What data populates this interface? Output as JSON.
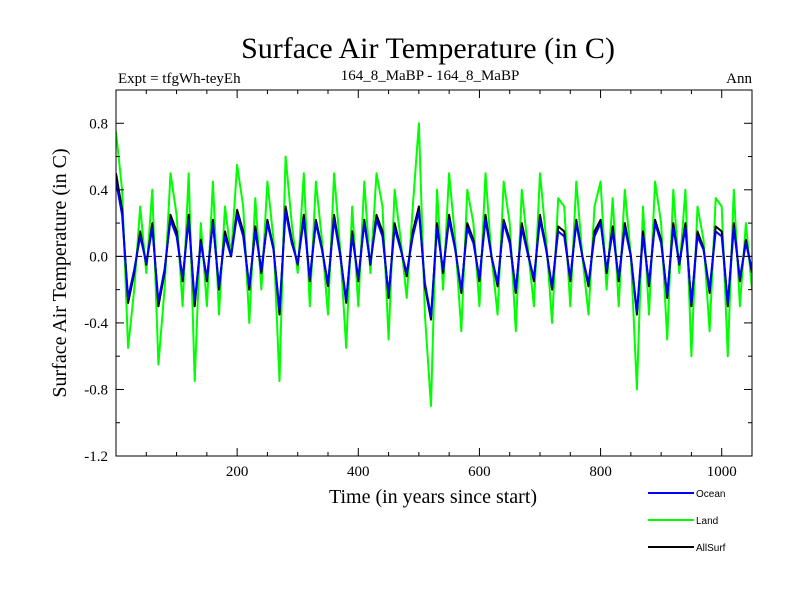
{
  "chart_data": {
    "type": "line",
    "title": "Surface Air Temperature (in C)",
    "subtitle_left": "Expt = tfgWh-teyEh",
    "subtitle_center": "164_8_MaBP - 164_8_MaBP",
    "subtitle_right": "Ann",
    "xlabel": "Time (in years since start)",
    "ylabel": "Surface Air Temperature (in C)",
    "xlim": [
      0,
      1050
    ],
    "ylim": [
      -1.2,
      1.0
    ],
    "x_ticks": [
      200,
      400,
      600,
      800,
      1000
    ],
    "x_tick_labels": [
      "200",
      "400",
      "600",
      "800",
      "1000"
    ],
    "y_ticks": [
      0.8,
      0.4,
      0.0,
      -0.4,
      -0.8,
      -1.2
    ],
    "y_tick_labels": [
      "0.8",
      "0.4",
      "0.0",
      "-0.4",
      "-0.8",
      "-1.2"
    ],
    "zero_line": 0.0,
    "legend_position": "bottom-right",
    "series": [
      {
        "name": "Land",
        "color": "#00ff00",
        "x": [
          0,
          10,
          20,
          30,
          40,
          50,
          60,
          70,
          80,
          90,
          100,
          110,
          120,
          130,
          140,
          150,
          160,
          170,
          180,
          190,
          200,
          210,
          220,
          230,
          240,
          250,
          260,
          270,
          280,
          290,
          300,
          310,
          320,
          330,
          340,
          350,
          360,
          370,
          380,
          390,
          400,
          410,
          420,
          430,
          440,
          450,
          460,
          470,
          480,
          490,
          500,
          510,
          520,
          530,
          540,
          550,
          560,
          570,
          580,
          590,
          600,
          610,
          620,
          630,
          640,
          650,
          660,
          670,
          680,
          690,
          700,
          710,
          720,
          730,
          740,
          750,
          760,
          770,
          780,
          790,
          800,
          810,
          820,
          830,
          840,
          850,
          860,
          870,
          880,
          890,
          900,
          910,
          920,
          930,
          940,
          950,
          960,
          970,
          980,
          990,
          1000,
          1010,
          1020,
          1030,
          1040,
          1050
        ],
        "values": [
          0.75,
          0.4,
          -0.55,
          -0.2,
          0.3,
          -0.1,
          0.4,
          -0.65,
          -0.2,
          0.5,
          0.25,
          -0.3,
          0.5,
          -0.75,
          0.2,
          -0.3,
          0.45,
          -0.35,
          0.3,
          0.0,
          0.55,
          0.3,
          -0.4,
          0.35,
          -0.2,
          0.45,
          0.1,
          -0.75,
          0.6,
          0.2,
          -0.1,
          0.5,
          -0.3,
          0.45,
          0.1,
          -0.35,
          0.5,
          0.05,
          -0.55,
          0.3,
          -0.3,
          0.45,
          -0.1,
          0.5,
          0.3,
          -0.5,
          0.4,
          0.1,
          -0.25,
          0.3,
          0.8,
          -0.35,
          -0.9,
          0.4,
          -0.2,
          0.5,
          0.1,
          -0.45,
          0.4,
          0.2,
          -0.3,
          0.5,
          0.0,
          -0.35,
          0.45,
          0.2,
          -0.45,
          0.4,
          0.05,
          -0.3,
          0.5,
          0.1,
          -0.4,
          0.35,
          0.3,
          -0.3,
          0.45,
          0.0,
          -0.35,
          0.3,
          0.45,
          -0.2,
          0.35,
          -0.3,
          0.4,
          0.0,
          -0.8,
          0.3,
          -0.35,
          0.45,
          0.2,
          -0.5,
          0.4,
          -0.1,
          0.4,
          -0.6,
          0.3,
          0.1,
          -0.45,
          0.35,
          0.3,
          -0.6,
          0.4,
          -0.3,
          0.2,
          -0.2
        ]
      },
      {
        "name": "AllSurf",
        "color": "#000000",
        "x": [
          0,
          10,
          20,
          30,
          40,
          50,
          60,
          70,
          80,
          90,
          100,
          110,
          120,
          130,
          140,
          150,
          160,
          170,
          180,
          190,
          200,
          210,
          220,
          230,
          240,
          250,
          260,
          270,
          280,
          290,
          300,
          310,
          320,
          330,
          340,
          350,
          360,
          370,
          380,
          390,
          400,
          410,
          420,
          430,
          440,
          450,
          460,
          470,
          480,
          490,
          500,
          510,
          520,
          530,
          540,
          550,
          560,
          570,
          580,
          590,
          600,
          610,
          620,
          630,
          640,
          650,
          660,
          670,
          680,
          690,
          700,
          710,
          720,
          730,
          740,
          750,
          760,
          770,
          780,
          790,
          800,
          810,
          820,
          830,
          840,
          850,
          860,
          870,
          880,
          890,
          900,
          910,
          920,
          930,
          940,
          950,
          960,
          970,
          980,
          990,
          1000,
          1010,
          1020,
          1030,
          1040,
          1050
        ],
        "values": [
          0.5,
          0.28,
          -0.28,
          -0.1,
          0.15,
          -0.05,
          0.2,
          -0.3,
          -0.1,
          0.25,
          0.15,
          -0.15,
          0.25,
          -0.3,
          0.1,
          -0.15,
          0.22,
          -0.2,
          0.15,
          0.0,
          0.28,
          0.15,
          -0.2,
          0.18,
          -0.1,
          0.22,
          0.05,
          -0.35,
          0.3,
          0.1,
          -0.05,
          0.25,
          -0.15,
          0.22,
          0.05,
          -0.18,
          0.25,
          0.02,
          -0.28,
          0.15,
          -0.15,
          0.22,
          -0.05,
          0.25,
          0.15,
          -0.25,
          0.2,
          0.05,
          -0.12,
          0.15,
          0.3,
          -0.18,
          -0.38,
          0.2,
          -0.1,
          0.25,
          0.05,
          -0.22,
          0.2,
          0.1,
          -0.15,
          0.25,
          0.0,
          -0.18,
          0.22,
          0.1,
          -0.22,
          0.2,
          0.02,
          -0.15,
          0.25,
          0.05,
          -0.2,
          0.18,
          0.15,
          -0.15,
          0.22,
          0.0,
          -0.18,
          0.15,
          0.22,
          -0.1,
          0.18,
          -0.15,
          0.2,
          0.0,
          -0.35,
          0.15,
          -0.18,
          0.22,
          0.1,
          -0.25,
          0.2,
          -0.05,
          0.2,
          -0.3,
          0.15,
          0.05,
          -0.22,
          0.18,
          0.15,
          -0.3,
          0.2,
          -0.15,
          0.1,
          -0.1
        ]
      },
      {
        "name": "Ocean",
        "color": "#0000ff",
        "x": [
          0,
          10,
          20,
          30,
          40,
          50,
          60,
          70,
          80,
          90,
          100,
          110,
          120,
          130,
          140,
          150,
          160,
          170,
          180,
          190,
          200,
          210,
          220,
          230,
          240,
          250,
          260,
          270,
          280,
          290,
          300,
          310,
          320,
          330,
          340,
          350,
          360,
          370,
          380,
          390,
          400,
          410,
          420,
          430,
          440,
          450,
          460,
          470,
          480,
          490,
          500,
          510,
          520,
          530,
          540,
          550,
          560,
          570,
          580,
          590,
          600,
          610,
          620,
          630,
          640,
          650,
          660,
          670,
          680,
          690,
          700,
          710,
          720,
          730,
          740,
          750,
          760,
          770,
          780,
          790,
          800,
          810,
          820,
          830,
          840,
          850,
          860,
          870,
          880,
          890,
          900,
          910,
          920,
          930,
          940,
          950,
          960,
          970,
          980,
          990,
          1000,
          1010,
          1020,
          1030,
          1040,
          1050
        ],
        "values": [
          0.45,
          0.25,
          -0.25,
          -0.08,
          0.12,
          -0.04,
          0.17,
          -0.27,
          -0.08,
          0.22,
          0.12,
          -0.13,
          0.22,
          -0.27,
          0.08,
          -0.13,
          0.2,
          -0.18,
          0.12,
          0.0,
          0.25,
          0.12,
          -0.18,
          0.15,
          -0.08,
          0.2,
          0.04,
          -0.32,
          0.27,
          0.08,
          -0.04,
          0.22,
          -0.13,
          0.2,
          0.04,
          -0.16,
          0.22,
          0.01,
          -0.26,
          0.12,
          -0.13,
          0.2,
          -0.04,
          0.22,
          0.12,
          -0.23,
          0.17,
          0.04,
          -0.1,
          0.12,
          0.27,
          -0.16,
          -0.36,
          0.17,
          -0.08,
          0.22,
          0.04,
          -0.2,
          0.17,
          0.08,
          -0.13,
          0.22,
          0.0,
          -0.16,
          0.2,
          0.08,
          -0.2,
          0.17,
          0.01,
          -0.13,
          0.22,
          0.04,
          -0.18,
          0.15,
          0.12,
          -0.13,
          0.2,
          0.0,
          -0.16,
          0.12,
          0.2,
          -0.08,
          0.15,
          -0.13,
          0.17,
          0.0,
          -0.33,
          0.12,
          -0.16,
          0.2,
          0.08,
          -0.23,
          0.17,
          -0.04,
          0.17,
          -0.28,
          0.12,
          0.04,
          -0.2,
          0.15,
          0.12,
          -0.28,
          0.17,
          -0.13,
          0.08,
          -0.08
        ]
      }
    ],
    "legend": [
      {
        "name": "Ocean",
        "color": "#0000ff"
      },
      {
        "name": "Land",
        "color": "#00ff00"
      },
      {
        "name": "AllSurf",
        "color": "#000000"
      }
    ]
  }
}
